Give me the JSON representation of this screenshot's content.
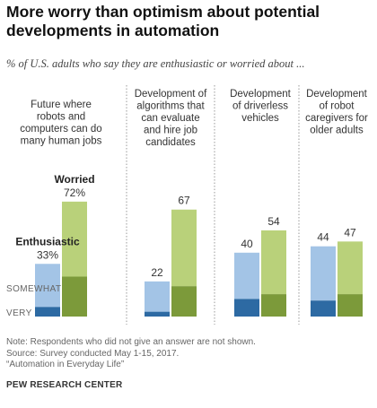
{
  "title": "More worry than optimism about potential developments in automation",
  "subtitle": "% of U.S. adults who say they are enthusiastic or worried about ...",
  "notes": [
    "Note: Respondents who did not give an answer are not shown.",
    "Source: Survey conducted May 1-15, 2017.",
    "“Automation in Everyday Life”"
  ],
  "source_org": "PEW RESEARCH CENTER",
  "colors": {
    "enthusiastic_light": "#a3c4e6",
    "enthusiastic_dark": "#2d6aa3",
    "worried_light": "#b9d17a",
    "worried_dark": "#7c9a3a",
    "divider": "#999999"
  },
  "chart_data": {
    "type": "bar",
    "categories": [
      "Future where robots and computers can do many human jobs",
      "Development of algorithms that can evaluate and hire job candidates",
      "Development of driverless vehicles",
      "Development of robot caregivers for older adults"
    ],
    "category_lines": [
      [
        "Future where",
        "robots and",
        "computers can do",
        "many human jobs"
      ],
      [
        "Development of",
        "algorithms that",
        "can evaluate",
        "and hire job",
        "candidates"
      ],
      [
        "Development",
        "of driverless",
        "vehicles"
      ],
      [
        "Development",
        "of robot",
        "caregivers for",
        "older adults"
      ]
    ],
    "series": [
      {
        "name": "Enthusiastic",
        "values": [
          33,
          22,
          40,
          44
        ],
        "very": [
          6,
          3,
          11,
          10
        ]
      },
      {
        "name": "Worried",
        "values": [
          72,
          67,
          54,
          47
        ],
        "very": [
          25,
          19,
          14,
          14
        ]
      }
    ],
    "value_labels": {
      "Enthusiastic": [
        "33%",
        "22",
        "40",
        "44"
      ],
      "Worried": [
        "72%",
        "67",
        "54",
        "47"
      ]
    },
    "segment_labels": [
      "SOMEWHAT",
      "VERY"
    ],
    "ylim": [
      0,
      100
    ],
    "grid": false
  }
}
